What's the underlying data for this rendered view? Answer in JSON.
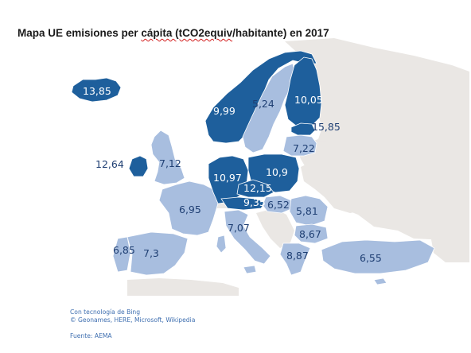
{
  "title": {
    "before": "Mapa UE emisiones per ",
    "misspelled": "cápita (tCO2equiv",
    "after": "/habitante) en 2017"
  },
  "colors": {
    "high": "#1e5f9c",
    "low": "#a8bedf",
    "non_eu": "#eae7e4",
    "sea": "#ffffff",
    "border": "#ffffff"
  },
  "values": {
    "iceland": "13,85",
    "norway": "9,99",
    "sweden": "5,24",
    "finland": "10,05",
    "estonia": "15,85",
    "latvia": "7,22",
    "ireland": "12,64",
    "uk": "7,12",
    "france": "6,95",
    "germany": "10,97",
    "poland": "10,9",
    "czechia": "12,15",
    "austria": "9,35",
    "hungary": "6,52",
    "romania": "5,81",
    "bulgaria": "8,67",
    "greece": "8,87",
    "italy": "7,07",
    "portugal": "6,85",
    "spain": "7,3",
    "turkey": "6,55"
  },
  "credits": {
    "line1": "Con tecnología de Bing",
    "line2": "© Geonames, HERE, Microsoft, Wikipedia",
    "source": "Fuente: AEMA"
  }
}
